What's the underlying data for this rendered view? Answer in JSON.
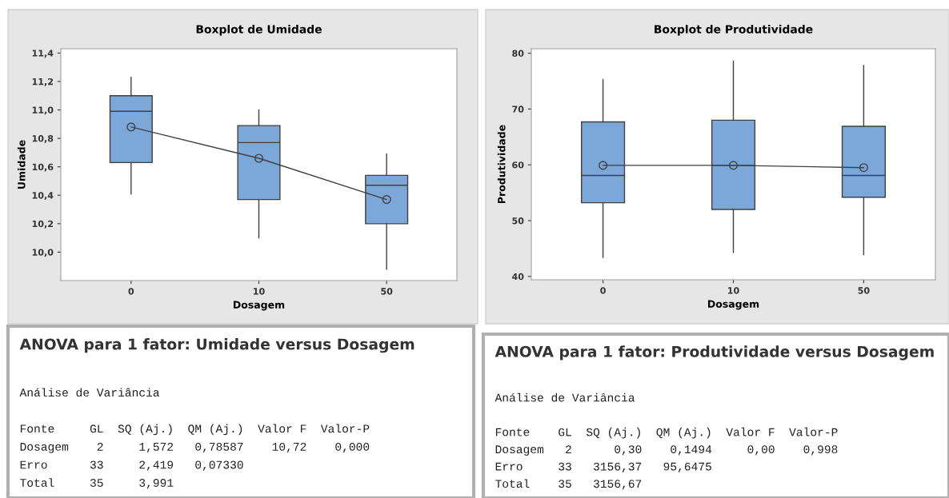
{
  "chart_data": [
    {
      "type": "box",
      "title": "Boxplot de Umidade",
      "xlabel": "Dosagem",
      "ylabel": "Umidade",
      "categories": [
        "0",
        "10",
        "50"
      ],
      "series": [
        {
          "type": "box",
          "color": "#7ba7d9",
          "boxes": [
            {
              "low": 10.41,
              "q1": 10.63,
              "median": 10.99,
              "q3": 11.1,
              "high": 11.23
            },
            {
              "low": 10.1,
              "q1": 10.37,
              "median": 10.77,
              "q3": 10.89,
              "high": 11.0
            },
            {
              "low": 9.88,
              "q1": 10.2,
              "median": 10.47,
              "q3": 10.54,
              "high": 10.69
            }
          ]
        },
        {
          "type": "line",
          "color": "#404040",
          "marker": "circle",
          "values": [
            10.88,
            10.66,
            10.37
          ]
        }
      ],
      "ylim": [
        9.8,
        11.43
      ],
      "yticks": [
        {
          "value": 10.0,
          "label": "10,0"
        },
        {
          "value": 10.2,
          "label": "10,2"
        },
        {
          "value": 10.4,
          "label": "10,4"
        },
        {
          "value": 10.6,
          "label": "10,6"
        },
        {
          "value": 10.8,
          "label": "10,8"
        },
        {
          "value": 11.0,
          "label": "11,0"
        },
        {
          "value": 11.2,
          "label": "11,2"
        },
        {
          "value": 11.4,
          "label": "11,4"
        }
      ],
      "grid": false
    },
    {
      "type": "box",
      "title": "Boxplot de Produtividade",
      "xlabel": "Dosagem",
      "ylabel": "Produtividade",
      "categories": [
        "0",
        "10",
        "50"
      ],
      "series": [
        {
          "type": "box",
          "color": "#7ba7d9",
          "boxes": [
            {
              "low": 43.4,
              "q1": 53.2,
              "median": 58.1,
              "q3": 67.7,
              "high": 75.3
            },
            {
              "low": 44.3,
              "q1": 52.0,
              "median": 59.9,
              "q3": 68.0,
              "high": 78.6
            },
            {
              "low": 43.9,
              "q1": 54.2,
              "median": 58.1,
              "q3": 66.9,
              "high": 77.8
            }
          ]
        },
        {
          "type": "line",
          "color": "#404040",
          "marker": "circle",
          "values": [
            59.9,
            59.9,
            59.5
          ]
        }
      ],
      "ylim": [
        39.4,
        80.8
      ],
      "yticks": [
        40,
        50,
        60,
        70,
        80
      ],
      "grid": false
    },
    {
      "type": "other",
      "title": "ANOVA para 1 fator: Umidade versus Dosagem",
      "annotations": [
        "Análise de Variância",
        "Fonte     GL  SQ (Aj.)  QM (Aj.)  Valor F  Valor-P",
        "Dosagem    2     1,572   0,78587    10,72    0,000",
        "Erro      33     2,419   0,07330",
        "Total     35     3,991"
      ]
    },
    {
      "type": "other",
      "title": "ANOVA para 1 fator: Produtividade versus Dosagem",
      "annotations": [
        "Análise de Variância",
        "Fonte    GL  SQ (Aj.)  QM (Aj.)  Valor F  Valor-P",
        "Dosagem   2      0,30    0,1494     0,00    0,998",
        "Erro     33   3156,37   95,6475",
        "Total    35   3156,67"
      ]
    }
  ]
}
